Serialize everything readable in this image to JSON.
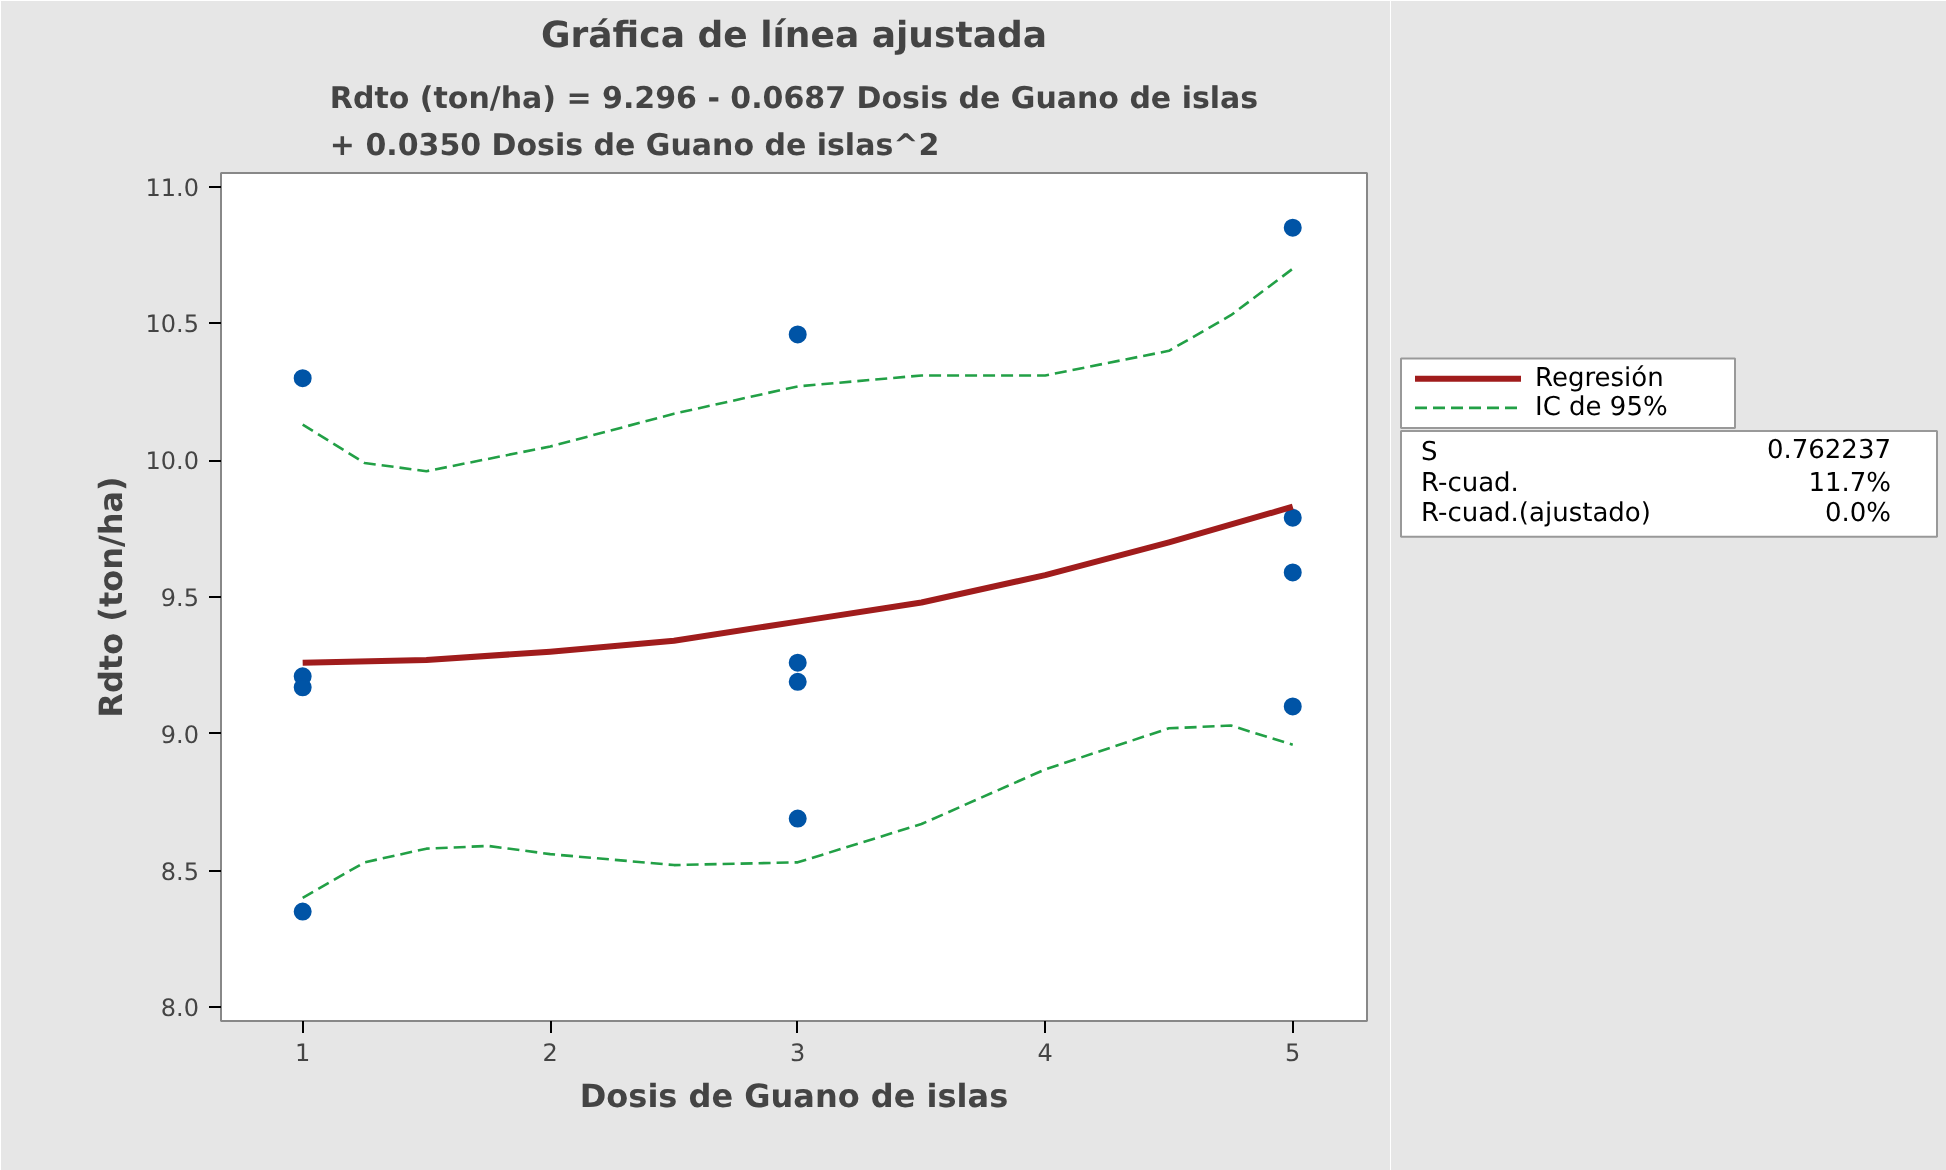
{
  "chart_data": {
    "type": "scatter",
    "title": "Gráfica de línea ajustada",
    "subtitle": "Rdto (ton/ha) = 9.296 - 0.0687 Dosis de Guano de islas\n+ 0.0350 Dosis de Guano de islas^2",
    "xlabel": "Dosis de Guano de islas",
    "ylabel": "Rdto (ton/ha)",
    "xlim": [
      0.67,
      5.3
    ],
    "ylim": [
      7.95,
      11.05
    ],
    "xticks": [
      1,
      2,
      3,
      4,
      5
    ],
    "yticks": [
      {
        "value": 8,
        "label": "8.0"
      },
      8.5,
      {
        "value": 9,
        "label": "9.0"
      },
      9.5,
      {
        "value": 10,
        "label": "10.0"
      },
      10.5,
      {
        "value": 11,
        "label": "11.0"
      }
    ],
    "grid": false,
    "legend": "right",
    "series": [
      {
        "marker": "circle",
        "color": "#0054a6",
        "x": [
          1,
          1,
          1,
          1,
          3,
          3,
          3,
          3,
          5,
          5,
          5,
          5
        ],
        "values": [
          10.3,
          9.21,
          9.17,
          8.35,
          10.46,
          9.26,
          9.19,
          8.69,
          10.85,
          9.79,
          9.59,
          9.1
        ]
      },
      {
        "type": "line",
        "name": "Regresión",
        "color": "#a01c1c",
        "line_style": "solid",
        "x": [
          1,
          1.5,
          2,
          2.5,
          3,
          3.5,
          4,
          4.5,
          5
        ],
        "values": [
          9.26,
          9.27,
          9.3,
          9.34,
          9.41,
          9.48,
          9.58,
          9.7,
          9.83
        ]
      },
      {
        "type": "line",
        "name": "IC de 95%",
        "color": "#22a046",
        "line_style": "dashed",
        "x": [
          1,
          1.25,
          1.5,
          2,
          2.5,
          3,
          3.5,
          4,
          4.5,
          4.75,
          5
        ],
        "values": [
          10.13,
          9.99,
          9.96,
          10.05,
          10.17,
          10.27,
          10.31,
          10.31,
          10.4,
          10.53,
          10.7
        ]
      },
      {
        "type": "line",
        "color": "#22a046",
        "line_style": "dashed",
        "x": [
          1,
          1.25,
          1.5,
          1.75,
          2,
          2.5,
          3,
          3.5,
          4,
          4.5,
          4.75,
          5
        ],
        "values": [
          8.4,
          8.53,
          8.58,
          8.59,
          8.56,
          8.52,
          8.53,
          8.67,
          8.87,
          9.02,
          9.03,
          8.96
        ]
      }
    ],
    "annotations": [
      "S",
      "0.762237",
      "R-cuad.",
      "11.7%",
      "R-cuad.(ajustado)",
      "0.0%"
    ]
  }
}
